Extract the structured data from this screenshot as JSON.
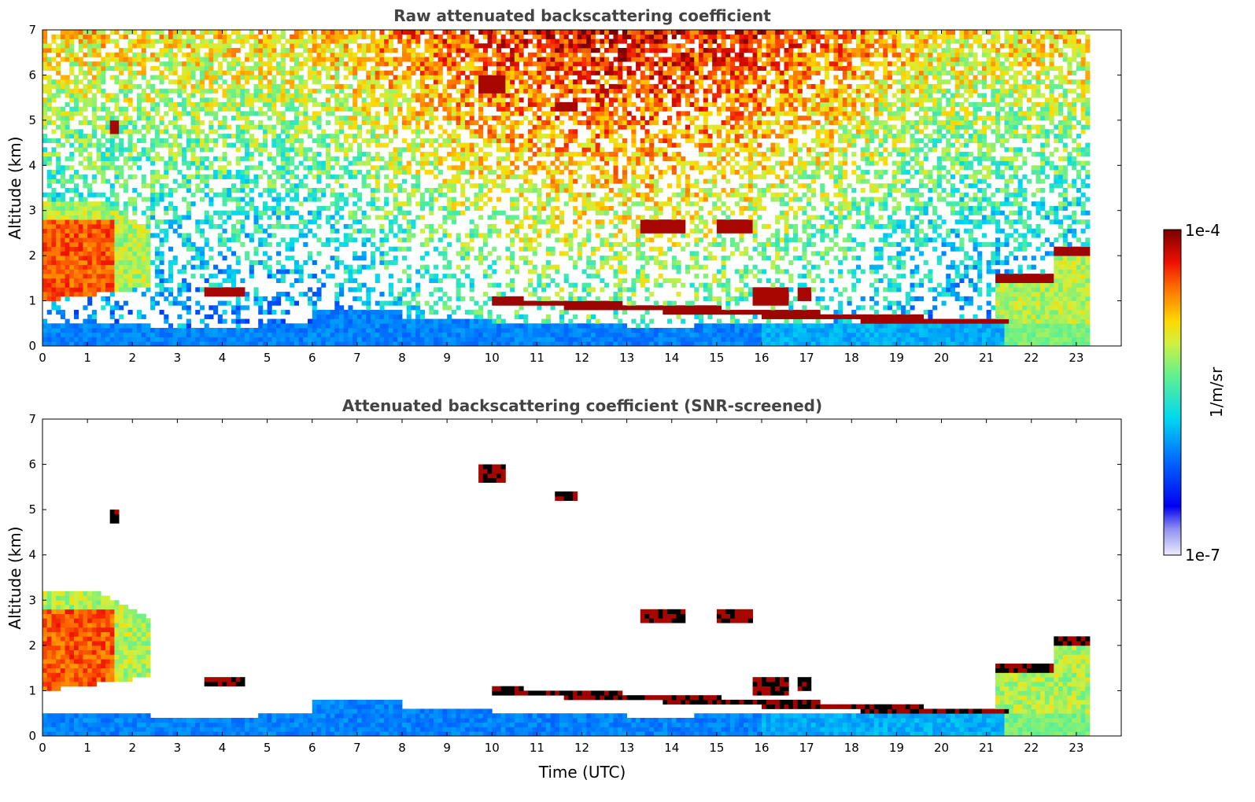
{
  "chart_data": [
    {
      "type": "heatmap",
      "title": "Raw attenuated backscattering coefficient",
      "xlabel": "",
      "ylabel": "Altitude (km)",
      "xlim": [
        0,
        24
      ],
      "ylim": [
        0,
        7
      ],
      "xticks": [
        0,
        1,
        2,
        3,
        4,
        5,
        6,
        7,
        8,
        9,
        10,
        11,
        12,
        13,
        14,
        15,
        16,
        17,
        18,
        19,
        20,
        21,
        22,
        23
      ],
      "yticks": [
        0,
        1,
        2,
        3,
        4,
        5,
        6,
        7
      ],
      "data_end_time": 23.3,
      "colorscale": "jet",
      "noise_level": "high",
      "features": [
        {
          "name": "boundary layer aerosol",
          "time": [
            0,
            23.3
          ],
          "altitude_km": [
            0,
            0.5
          ],
          "level": "low"
        },
        {
          "name": "low cloud (early)",
          "time": [
            0,
            2.4
          ],
          "altitude_km": [
            1.0,
            3.2
          ],
          "level": "high"
        },
        {
          "name": "cloud",
          "time": [
            1.5,
            1.75
          ],
          "altitude_km": [
            4.7,
            5.0
          ],
          "level": "max"
        },
        {
          "name": "cloud",
          "time": [
            3.6,
            4.5
          ],
          "altitude_km": [
            1.1,
            1.25
          ],
          "level": "max"
        },
        {
          "name": "cloud",
          "time": [
            9.75,
            10.25
          ],
          "altitude_km": [
            5.6,
            6.0
          ],
          "level": "max"
        },
        {
          "name": "cloud",
          "time": [
            13.3,
            15.8
          ],
          "altitude_km": [
            2.5,
            2.75
          ],
          "level": "max"
        },
        {
          "name": "cloud layer",
          "time": [
            10,
            21.5
          ],
          "altitude_km": [
            0.5,
            1.1
          ],
          "level": "max"
        },
        {
          "name": "cloud (late)",
          "time": [
            21.2,
            23.3
          ],
          "altitude_km": [
            1.3,
            2.3
          ],
          "level": "max"
        }
      ]
    },
    {
      "type": "heatmap",
      "title": "Attenuated backscattering coefficient (SNR-screened)",
      "xlabel": "Time (UTC)",
      "ylabel": "Altitude (km)",
      "xlim": [
        0,
        24
      ],
      "ylim": [
        0,
        7
      ],
      "xticks": [
        0,
        1,
        2,
        3,
        4,
        5,
        6,
        7,
        8,
        9,
        10,
        11,
        12,
        13,
        14,
        15,
        16,
        17,
        18,
        19,
        20,
        21,
        22,
        23
      ],
      "yticks": [
        0,
        1,
        2,
        3,
        4,
        5,
        6,
        7
      ],
      "data_end_time": 23.3,
      "colorscale": "jet",
      "noise_level": "screened"
    }
  ],
  "colorbar": {
    "max_label": "1e-4",
    "min_label": "1e-7",
    "unit": "1/m/sr"
  }
}
